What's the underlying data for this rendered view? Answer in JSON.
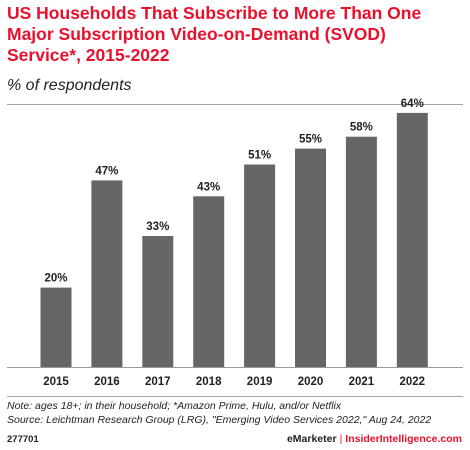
{
  "header": {
    "title": "US Households That Subscribe to More Than One Major Subscription Video-on-Demand (SVOD) Service*, 2015-2022",
    "subtitle": "% of respondents"
  },
  "chart_data": {
    "type": "bar",
    "categories": [
      "2015",
      "2016",
      "2017",
      "2018",
      "2019",
      "2020",
      "2021",
      "2022"
    ],
    "values": [
      20,
      47,
      33,
      43,
      51,
      55,
      58,
      64
    ],
    "value_labels": [
      "20%",
      "47%",
      "33%",
      "43%",
      "51%",
      "55%",
      "58%",
      "64%"
    ],
    "ylim": [
      0,
      70
    ],
    "grid": false,
    "bar_color": "#666666",
    "axis_color": "#9a9a9a"
  },
  "footer": {
    "note": "Note: ages 18+; in their household; *Amazon Prime, Hulu, and/or Netflix",
    "source": "Source: Leichtman Research Group (LRG), \"Emerging Video Services 2022,\" Aug 24, 2022",
    "chart_id": "277701",
    "brand_left": "eMarketer",
    "brand_sep": "|",
    "brand_right": "InsiderIntelligence.com",
    "accent_color": "#e8112d"
  }
}
